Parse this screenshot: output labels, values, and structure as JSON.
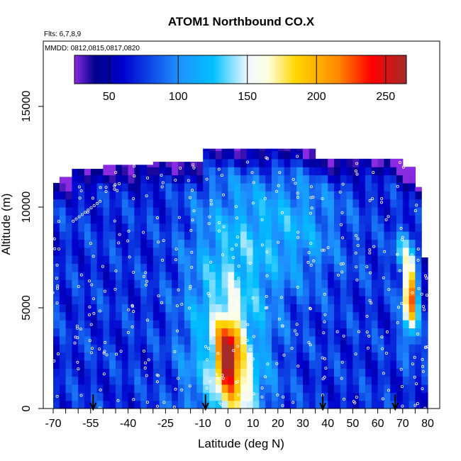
{
  "chart_data": {
    "type": "heatmap",
    "title": "ATOM1 Northbound CO.X",
    "notes": [
      "Flts: 6,7,8,9",
      "MMDD: 0812,0815,0817,0820"
    ],
    "xlabel": "Latitude (deg N)",
    "ylabel": "Altitude (m)",
    "xlim": [
      -70,
      80
    ],
    "ylim": [
      0,
      17500
    ],
    "x_ticks": [
      -70,
      -55,
      -40,
      -25,
      -10,
      0,
      10,
      20,
      30,
      40,
      50,
      60,
      70,
      80
    ],
    "x_minor_step": 5,
    "y_ticks": [
      0,
      5000,
      10000,
      15000
    ],
    "colorbar": {
      "range": [
        25,
        265
      ],
      "ticks": [
        50,
        100,
        150,
        200,
        250
      ],
      "stops": [
        {
          "v": 25,
          "c": "#8a2be2"
        },
        {
          "v": 40,
          "c": "#00008b"
        },
        {
          "v": 60,
          "c": "#0000cd"
        },
        {
          "v": 100,
          "c": "#1e90ff"
        },
        {
          "v": 125,
          "c": "#00bfff"
        },
        {
          "v": 150,
          "c": "#f0f8ff"
        },
        {
          "v": 165,
          "c": "#ffffe0"
        },
        {
          "v": 185,
          "c": "#ffd700"
        },
        {
          "v": 215,
          "c": "#ff8c00"
        },
        {
          "v": 240,
          "c": "#ff0000"
        },
        {
          "v": 265,
          "c": "#a52a2a"
        }
      ]
    },
    "arrows_lat": [
      -54,
      -9,
      38,
      67
    ],
    "grid": false,
    "legend": "top colorbar"
  }
}
